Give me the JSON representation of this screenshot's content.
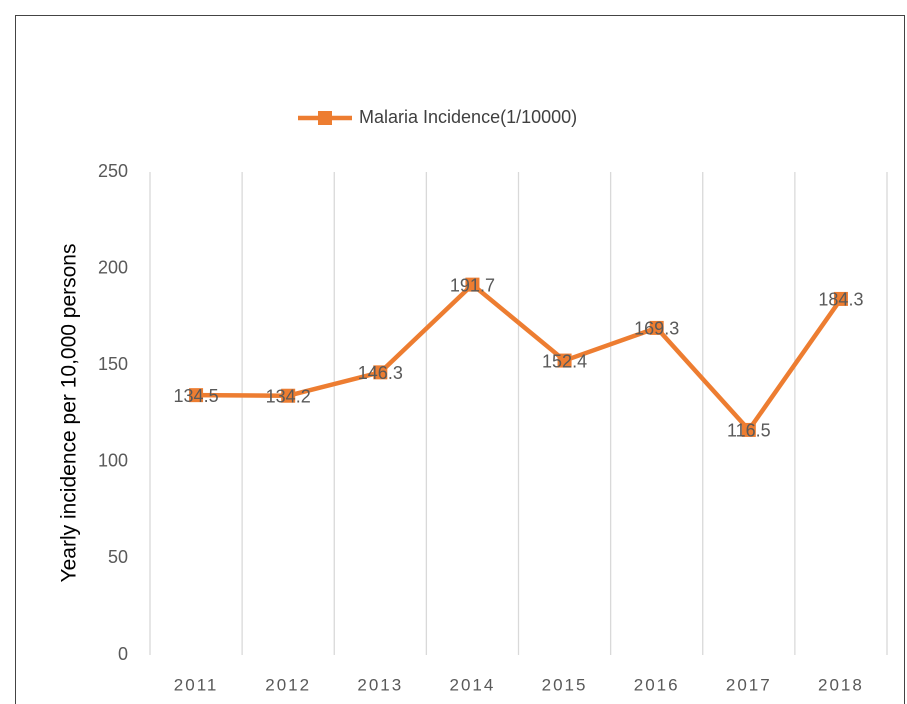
{
  "chart_data": {
    "type": "line",
    "y_label": "Yearly incidence per 10,000 persons",
    "categories": [
      "2011",
      "2012",
      "2013",
      "2014",
      "2015",
      "2016",
      "2017",
      "2018"
    ],
    "series": [
      {
        "name": "Malaria Incidence(1/10000)",
        "color": "#ed7d31",
        "values": [
          134.5,
          134.2,
          146.3,
          191.7,
          152.4,
          169.3,
          116.5,
          184.3
        ]
      }
    ],
    "ylim": [
      0,
      250
    ],
    "yticks": [
      0,
      50,
      100,
      150,
      200,
      250
    ],
    "grid": true,
    "data_labels": true,
    "legend": "top"
  }
}
